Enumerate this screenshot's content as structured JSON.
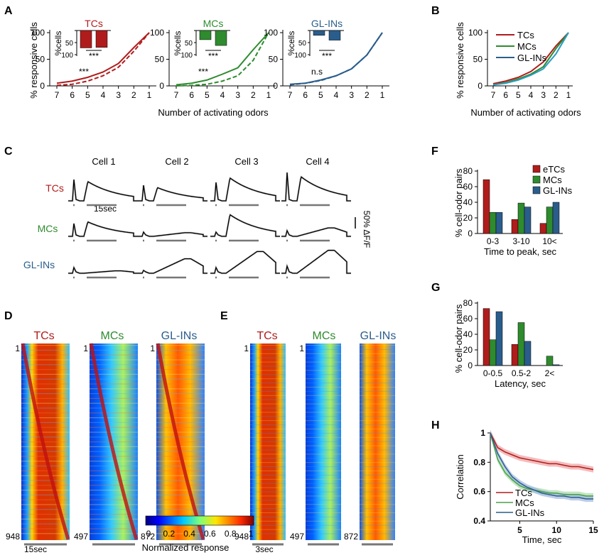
{
  "colors": {
    "tc": "#b01c1c",
    "mc": "#2e8b2e",
    "gl": "#2a5d8c",
    "black": "#000000",
    "grey": "#999999"
  },
  "panels": {
    "A": "A",
    "B": "B",
    "C": "C",
    "D": "D",
    "E": "E",
    "F": "F",
    "G": "G",
    "H": "H"
  },
  "common": {
    "pct_responsive": "% responsive cells",
    "num_odors": "Number of activating odors",
    "pct_cells": "%cells",
    "pct_cell_odor": "% cell-odor pairs",
    "stars": "***",
    "ns": "n.s",
    "ticks_odors": [
      "7",
      "6",
      "5",
      "4",
      "3",
      "2",
      "1"
    ],
    "ticks_pct": [
      "0",
      "50",
      "100"
    ],
    "inset_ticks": [
      "0",
      "50",
      "100"
    ]
  },
  "groups": {
    "tc": "TCs",
    "mc": "MCs",
    "gl": "GL-INs",
    "etc": "eTCs"
  },
  "panelC": {
    "cells": [
      "Cell 1",
      "Cell 2",
      "Cell 3",
      "Cell 4"
    ],
    "rows": [
      "TCs",
      "MCs",
      "GL-INs"
    ],
    "time_scale": "15sec",
    "amp_scale": "50% ΔF/F"
  },
  "panelD": {
    "time_scale": "15sec",
    "row_start": [
      "1",
      "1",
      "1"
    ],
    "row_end": [
      "948",
      "497",
      "872"
    ]
  },
  "panelE": {
    "time_scale": "3sec",
    "row_start": [
      "1",
      "1",
      "1"
    ],
    "row_end": [
      "948",
      "497",
      "872"
    ]
  },
  "colorbar": {
    "ticks": [
      "0",
      "0.2",
      "0.4",
      "0.6",
      "0.8",
      "1"
    ],
    "label": "Normalized response"
  },
  "chart_data": [
    {
      "id": "A-TCs",
      "type": "line",
      "title": "TCs",
      "x": [
        7,
        6,
        5,
        4,
        3,
        2,
        1
      ],
      "series": [
        {
          "name": "solid",
          "values": [
            5,
            9,
            16,
            26,
            42,
            72,
            100
          ]
        },
        {
          "name": "dashed",
          "values": [
            1,
            3,
            9,
            19,
            35,
            65,
            100
          ]
        }
      ],
      "inset": {
        "type": "bar",
        "values": [
          72,
          70
        ],
        "ylim": [
          0,
          100
        ],
        "annotation": "***"
      },
      "annotation": "***",
      "xlabel": "Number of activating odors",
      "ylabel": "% responsive cells",
      "ylim": [
        0,
        100
      ]
    },
    {
      "id": "A-MCs",
      "type": "line",
      "title": "MCs",
      "x": [
        7,
        6,
        5,
        4,
        3,
        2,
        1
      ],
      "series": [
        {
          "name": "solid",
          "values": [
            2,
            5,
            11,
            22,
            34,
            68,
            100
          ]
        },
        {
          "name": "dashed",
          "values": [
            0,
            1,
            3,
            9,
            19,
            48,
            100
          ]
        }
      ],
      "inset": {
        "type": "bar",
        "values": [
          38,
          62
        ],
        "ylim": [
          0,
          100
        ],
        "annotation": "***"
      },
      "annotation": "***",
      "ylim": [
        0,
        100
      ]
    },
    {
      "id": "A-GLINs",
      "type": "line",
      "title": "GL-INs",
      "x": [
        7,
        6,
        5,
        4,
        3,
        2,
        1
      ],
      "series": [
        {
          "name": "solid",
          "values": [
            3,
            5,
            11,
            19,
            32,
            58,
            100
          ]
        },
        {
          "name": "dashed",
          "values": [
            2,
            5,
            10,
            19,
            32,
            58,
            100
          ]
        }
      ],
      "inset": {
        "type": "bar",
        "values": [
          20,
          40
        ],
        "ylim": [
          0,
          100
        ],
        "annotation": "***"
      },
      "annotation": "n.s",
      "ylim": [
        0,
        100
      ]
    },
    {
      "id": "B",
      "type": "line",
      "x": [
        7,
        6,
        5,
        4,
        3,
        2,
        1
      ],
      "series": [
        {
          "name": "TCs",
          "values": [
            4,
            9,
            16,
            27,
            45,
            75,
            100
          ]
        },
        {
          "name": "MCs",
          "values": [
            2,
            6,
            13,
            22,
            36,
            70,
            100
          ]
        },
        {
          "name": "GL-INs",
          "values": [
            2,
            5,
            11,
            20,
            32,
            60,
            100
          ]
        }
      ],
      "xlabel": "Number of activating odors",
      "ylabel": "% responsive cells",
      "ylim": [
        0,
        100
      ],
      "yticks": [
        0,
        50,
        100
      ],
      "legend": "top-left"
    },
    {
      "id": "F",
      "type": "bar",
      "categories": [
        "0-3",
        "3-10",
        "10<"
      ],
      "series": [
        {
          "name": "eTCs",
          "values": [
            69,
            18,
            13
          ]
        },
        {
          "name": "MCs",
          "values": [
            27,
            39,
            34
          ]
        },
        {
          "name": "GL-INs",
          "values": [
            27,
            34,
            40
          ]
        }
      ],
      "xlabel": "Time to peak, sec",
      "ylabel": "% cell-odor pairs",
      "ylim": [
        0,
        80
      ],
      "yticks": [
        0,
        20,
        40,
        60,
        80
      ],
      "legend": "top-right"
    },
    {
      "id": "G",
      "type": "bar",
      "categories": [
        "0-0.5",
        "0.5-2",
        "2<"
      ],
      "series": [
        {
          "name": "eTCs",
          "values": [
            73,
            27,
            0
          ]
        },
        {
          "name": "MCs",
          "values": [
            33,
            55,
            12
          ]
        },
        {
          "name": "GL-INs",
          "values": [
            69,
            31,
            1
          ]
        }
      ],
      "xlabel": "Latency, sec",
      "ylabel": "% cell-odor pairs",
      "ylim": [
        0,
        80
      ],
      "yticks": [
        0,
        20,
        40,
        60,
        80
      ]
    },
    {
      "id": "H",
      "type": "line",
      "x": [
        1,
        2,
        3,
        4,
        5,
        6,
        7,
        8,
        9,
        10,
        11,
        12,
        13,
        14,
        15
      ],
      "series": [
        {
          "name": "TCs",
          "values": [
            1.0,
            0.9,
            0.87,
            0.85,
            0.83,
            0.82,
            0.81,
            0.8,
            0.79,
            0.79,
            0.78,
            0.77,
            0.77,
            0.76,
            0.75
          ]
        },
        {
          "name": "MCs",
          "values": [
            1.0,
            0.82,
            0.73,
            0.68,
            0.64,
            0.62,
            0.61,
            0.6,
            0.59,
            0.59,
            0.58,
            0.58,
            0.58,
            0.57,
            0.57
          ]
        },
        {
          "name": "GL-INs",
          "values": [
            1.0,
            0.86,
            0.77,
            0.7,
            0.66,
            0.63,
            0.61,
            0.59,
            0.58,
            0.57,
            0.57,
            0.56,
            0.56,
            0.55,
            0.55
          ]
        }
      ],
      "xlabel": "Time, sec",
      "ylabel": "Correlation",
      "ylim": [
        0.4,
        1
      ],
      "xlim": [
        1,
        15
      ],
      "yticks": [
        0.4,
        0.6,
        0.8,
        1
      ],
      "xticks": [
        5,
        10,
        15
      ],
      "legend": "bottom-left"
    }
  ]
}
